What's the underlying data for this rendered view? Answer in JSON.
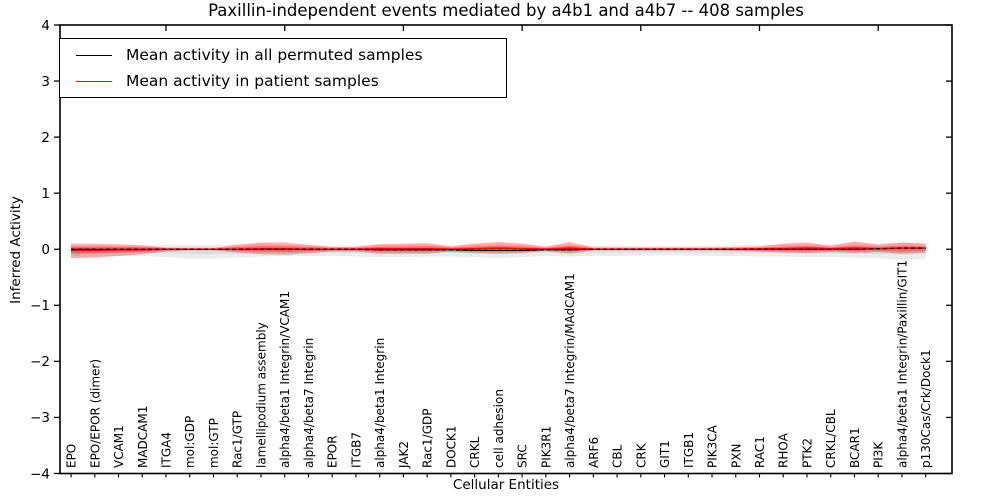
{
  "chart_data": {
    "type": "line",
    "title": "Paxillin-independent events mediated by a4b1 and a4b7 -- 408 samples",
    "xlabel": "Cellular Entities",
    "ylabel": "Inferred Activity",
    "ylim": [
      -4,
      4
    ],
    "yticks": [
      -4,
      -3,
      -2,
      -1,
      0,
      1,
      2,
      3,
      4
    ],
    "grid": false,
    "legend_position": "upper left",
    "legend": [
      {
        "label": "Mean activity in all permuted samples",
        "color": "#000000"
      },
      {
        "label": "Mean activity in patient samples",
        "color": "#ff0000"
      }
    ],
    "categories": [
      "EPO",
      "EPO/EPOR (dimer)",
      "VCAM1",
      "MADCAM1",
      "ITGA4",
      "mol:GDP",
      "mol:GTP",
      "Rac1/GTP",
      "lamellipodium assembly",
      "alpha4/beta1 Integrin/VCAM1",
      "alpha4/beta7 Integrin",
      "EPOR",
      "ITGB7",
      "alpha4/beta1 Integrin",
      "JAK2",
      "Rac1/GDP",
      "DOCK1",
      "CRKL",
      "cell adhesion",
      "SRC",
      "PIK3R1",
      "alpha4/beta7 Integrin/MAdCAM1",
      "ARF6",
      "CBL",
      "CRK",
      "GIT1",
      "ITGB1",
      "PIK3CA",
      "PXN",
      "RAC1",
      "RHOA",
      "PTK2",
      "CRKL/CBL",
      "BCAR1",
      "PI3K",
      "alpha4/beta1 Integrin/Paxillin/GIT1",
      "p130Cas/Crk/Dock1"
    ],
    "series": [
      {
        "name": "Mean activity in all permuted samples",
        "color": "#000000",
        "style": "solid-with-dashes",
        "values": [
          0,
          0,
          0,
          0,
          0,
          0,
          0,
          0,
          0,
          0,
          0,
          0,
          0,
          -0.01,
          -0.01,
          -0.01,
          -0.01,
          -0.02,
          -0.02,
          -0.02,
          -0.01,
          -0.01,
          0,
          0,
          0,
          0,
          0,
          0,
          0,
          0,
          0,
          0,
          0,
          0,
          0.01,
          0.02,
          0.02
        ]
      },
      {
        "name": "Mean activity in patient samples",
        "color": "#ff0000",
        "style": "solid",
        "values": [
          -0.02,
          -0.02,
          -0.01,
          -0.01,
          0,
          0,
          0,
          0,
          0.01,
          0.01,
          0,
          0,
          0,
          0.01,
          0.01,
          0.01,
          0,
          0.01,
          0.02,
          0.01,
          0,
          0.02,
          0,
          0,
          0,
          0,
          0,
          0,
          0,
          0.01,
          0.01,
          0.02,
          0.01,
          0.02,
          0.01,
          0.02,
          0.02
        ]
      }
    ],
    "bands": [
      {
        "name": "permuted-sample-range",
        "color": "#888888",
        "upper": [
          0.07,
          0.07,
          0.07,
          0.07,
          0.08,
          0.08,
          0.08,
          0.08,
          0.1,
          0.08,
          0.07,
          0.07,
          0.07,
          0.08,
          0.08,
          0.08,
          0.07,
          0.08,
          0.09,
          0.08,
          0.07,
          0.08,
          0.07,
          0.07,
          0.06,
          0.06,
          0.06,
          0.07,
          0.07,
          0.08,
          0.08,
          0.09,
          0.09,
          0.09,
          0.1,
          0.12,
          0.1
        ],
        "lower": [
          -0.13,
          -0.13,
          -0.12,
          -0.12,
          -0.14,
          -0.17,
          -0.17,
          -0.15,
          -0.13,
          -0.12,
          -0.12,
          -0.12,
          -0.13,
          -0.14,
          -0.14,
          -0.13,
          -0.13,
          -0.14,
          -0.16,
          -0.14,
          -0.12,
          -0.13,
          -0.12,
          -0.12,
          -0.11,
          -0.11,
          -0.11,
          -0.12,
          -0.12,
          -0.13,
          -0.13,
          -0.14,
          -0.14,
          -0.15,
          -0.16,
          -0.19,
          -0.17
        ]
      },
      {
        "name": "patient-sample-range",
        "color": "#ff0000",
        "upper": [
          0.1,
          0.1,
          0.09,
          0.07,
          0.03,
          0.02,
          0.02,
          0.08,
          0.12,
          0.12,
          0.08,
          0.04,
          0.04,
          0.09,
          0.1,
          0.11,
          0.05,
          0.1,
          0.13,
          0.1,
          0.04,
          0.13,
          0.03,
          0.03,
          0.03,
          0.03,
          0.03,
          0.03,
          0.04,
          0.05,
          0.1,
          0.12,
          0.06,
          0.14,
          0.08,
          0.12,
          0.1
        ],
        "lower": [
          -0.16,
          -0.15,
          -0.12,
          -0.09,
          -0.04,
          -0.02,
          -0.02,
          -0.06,
          -0.09,
          -0.1,
          -0.07,
          -0.04,
          -0.04,
          -0.08,
          -0.08,
          -0.08,
          -0.04,
          -0.07,
          -0.08,
          -0.07,
          -0.03,
          -0.08,
          -0.02,
          -0.02,
          -0.02,
          -0.02,
          -0.02,
          -0.02,
          -0.03,
          -0.04,
          -0.06,
          -0.07,
          -0.05,
          -0.07,
          -0.05,
          -0.08,
          -0.06
        ]
      }
    ]
  }
}
